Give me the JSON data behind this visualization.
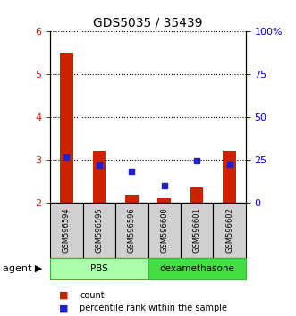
{
  "title": "GDS5035 / 35439",
  "samples": [
    "GSM596594",
    "GSM596595",
    "GSM596596",
    "GSM596600",
    "GSM596601",
    "GSM596602"
  ],
  "bar_values": [
    5.5,
    3.2,
    2.15,
    2.1,
    2.35,
    3.2
  ],
  "bar_bottom": 2.0,
  "dot_values_left": [
    3.05,
    2.88,
    2.72,
    2.38,
    2.98,
    2.9
  ],
  "ylim_left": [
    2.0,
    6.0
  ],
  "ylim_right": [
    0,
    100
  ],
  "yticks_left": [
    2,
    3,
    4,
    5,
    6
  ],
  "yticks_right": [
    0,
    25,
    50,
    75,
    100
  ],
  "bar_color": "#cc2200",
  "dot_color": "#2222cc",
  "groups": [
    {
      "label": "PBS",
      "col_indices": [
        0,
        1,
        2
      ],
      "facecolor": "#aaffaa",
      "edgecolor": "#33bb33"
    },
    {
      "label": "dexamethasone",
      "col_indices": [
        3,
        4,
        5
      ],
      "facecolor": "#44dd44",
      "edgecolor": "#33bb33"
    }
  ],
  "sample_box_color": "#d0d0d0",
  "agent_label": "agent",
  "legend_bar_label": "count",
  "legend_dot_label": "percentile rank within the sample",
  "tick_color_left": "#cc2200",
  "tick_color_right": "#0000cc"
}
